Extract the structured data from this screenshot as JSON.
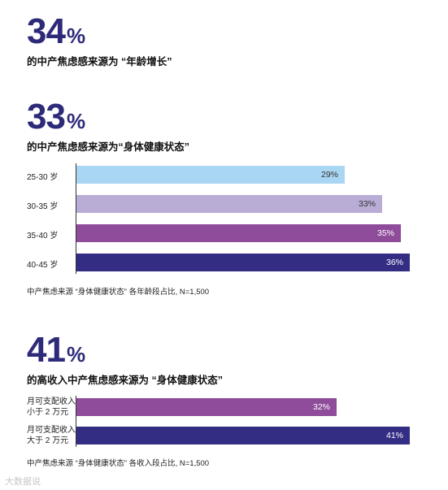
{
  "stats": [
    {
      "number": "34",
      "unit": "%",
      "caption": "的中产焦虑感来源为 “年龄增长”"
    },
    {
      "number": "33",
      "unit": "%",
      "caption": "的中产焦虑感来源为“身体健康状态”"
    },
    {
      "number": "41",
      "unit": "%",
      "caption": "的高收入中产焦虑感来源为 “身体健康状态”"
    }
  ],
  "chart_data": [
    {
      "type": "bar",
      "orientation": "horizontal",
      "categories": [
        "25-30 岁",
        "30-35 岁",
        "35-40 岁",
        "40-45 岁"
      ],
      "values": [
        29,
        33,
        35,
        36
      ],
      "value_labels": [
        "29%",
        "33%",
        "35%",
        "36%"
      ],
      "colors": [
        "#a9d6f2",
        "#b9add5",
        "#8e4c9b",
        "#332e84"
      ],
      "label_colors": [
        "#333333",
        "#333333",
        "#ffffff",
        "#ffffff"
      ],
      "xlim": [
        0,
        36
      ],
      "note": "中产焦虑来源 “身体健康状态” 各年龄段占比, N=1,500"
    },
    {
      "type": "bar",
      "orientation": "horizontal",
      "categories": [
        [
          "月可支配收入",
          "小于 2 万元"
        ],
        [
          "月可支配收入",
          "大于 2 万元"
        ]
      ],
      "values": [
        32,
        41
      ],
      "value_labels": [
        "32%",
        "41%"
      ],
      "colors": [
        "#8e4c9b",
        "#332e84"
      ],
      "label_colors": [
        "#ffffff",
        "#ffffff"
      ],
      "xlim": [
        0,
        41
      ],
      "note": "中产焦虑来源 “身体健康状态” 各收入段占比, N=1,500"
    }
  ],
  "watermark": "大数据说"
}
